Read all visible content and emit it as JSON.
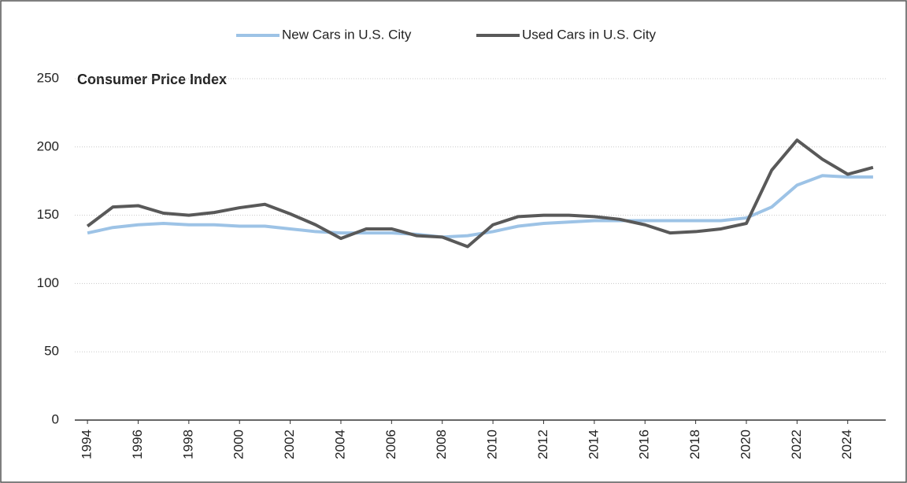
{
  "chart_data": {
    "type": "line",
    "title": "Consumer Price Index",
    "x": [
      1994,
      1995,
      1996,
      1997,
      1998,
      1999,
      2000,
      2001,
      2002,
      2003,
      2004,
      2005,
      2006,
      2007,
      2008,
      2009,
      2010,
      2011,
      2012,
      2013,
      2014,
      2015,
      2016,
      2017,
      2018,
      2019,
      2020,
      2021,
      2022,
      2023,
      2024,
      2025
    ],
    "series": [
      {
        "name": "New Cars in U.S. City",
        "color": "#9dc3e6",
        "values": [
          137,
          141,
          143,
          144,
          143,
          143,
          142,
          142,
          140,
          138,
          137,
          137,
          137,
          136,
          134,
          135,
          138,
          142,
          144,
          145,
          146,
          146,
          146,
          146,
          146,
          146,
          148,
          156,
          172,
          179,
          178,
          178
        ]
      },
      {
        "name": "Used Cars in U.S. City",
        "color": "#595959",
        "values": [
          142,
          156,
          157,
          151.5,
          150,
          152,
          155.5,
          158,
          151,
          143,
          133,
          140,
          140,
          135,
          134,
          127,
          143,
          149,
          150,
          150,
          149,
          147,
          143,
          137,
          138,
          140,
          144,
          183,
          205,
          191,
          180,
          185
        ]
      }
    ],
    "xlim": [
      1993.5,
      2025.5
    ],
    "xticks": [
      1994,
      1996,
      1998,
      2000,
      2002,
      2004,
      2006,
      2008,
      2010,
      2012,
      2014,
      2016,
      2018,
      2020,
      2022,
      2024
    ],
    "ylim": [
      0,
      250
    ],
    "yticks": [
      0,
      50,
      100,
      150,
      200,
      250
    ],
    "grid": true,
    "legend": "top"
  }
}
